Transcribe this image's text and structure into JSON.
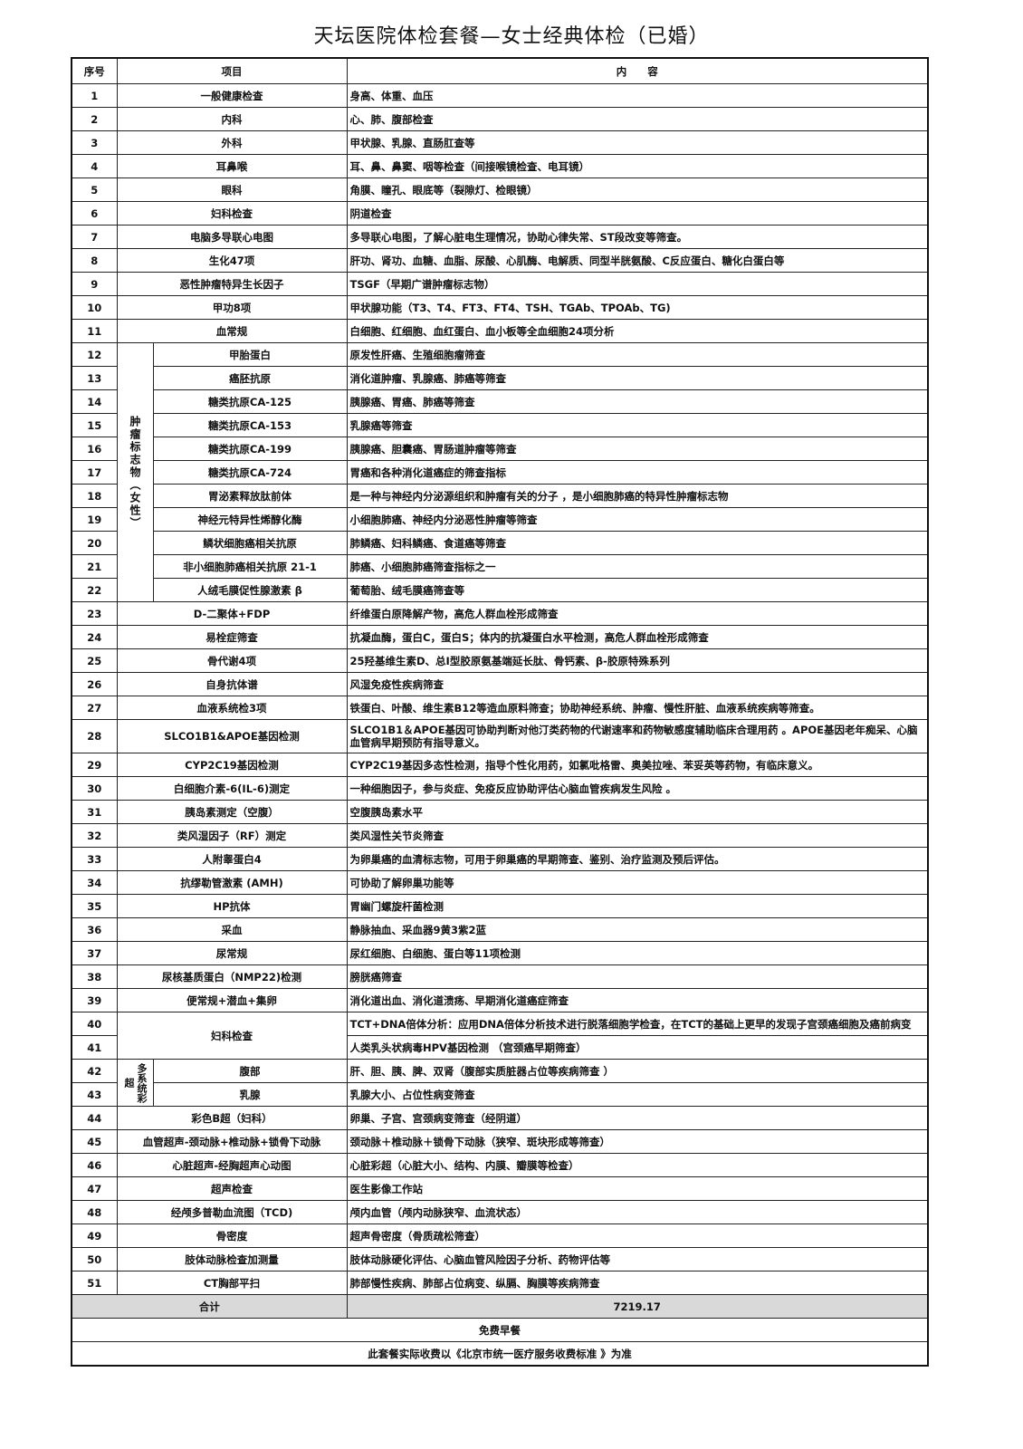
{
  "title": "天坛医院体检套餐—女士经典体检（已婚）",
  "headers": {
    "no": "序号",
    "item": "项目",
    "content": "内　　容"
  },
  "group_labels": {
    "tumor": "肿瘤标志物（女性）",
    "gyn": "妇科检查",
    "ultrasound": "多系统彩超"
  },
  "rows": [
    {
      "no": "1",
      "item": "一般健康检查",
      "content": "身高、体重、血压"
    },
    {
      "no": "2",
      "item": "内科",
      "content": "心、肺、腹部检查"
    },
    {
      "no": "3",
      "item": "外科",
      "content": "甲状腺、乳腺、直肠肛查等"
    },
    {
      "no": "4",
      "item": "耳鼻喉",
      "content": "耳、鼻、鼻窦、咽等检查（间接喉镜检查、电耳镜）"
    },
    {
      "no": "5",
      "item": "眼科",
      "content": "角膜、瞳孔、眼底等（裂隙灯、检眼镜）"
    },
    {
      "no": "6",
      "item": "妇科检查",
      "content": "阴道检查"
    },
    {
      "no": "7",
      "item": "电脑多导联心电图",
      "content": "多导联心电图，了解心脏电生理情况，协助心律失常、ST段改变等筛查。"
    },
    {
      "no": "8",
      "item": "生化47项",
      "content": "肝功、肾功、血糖、血脂、尿酸、心肌酶、电解质、同型半胱氨酸、C反应蛋白、糖化白蛋白等"
    },
    {
      "no": "9",
      "item": "恶性肿瘤特异生长因子",
      "content": "TSGF（早期广谱肿瘤标志物）"
    },
    {
      "no": "10",
      "item": "甲功8项",
      "content": "甲状腺功能（T3、T4、FT3、FT4、TSH、TGAb、TPOAb、TG)"
    },
    {
      "no": "11",
      "item": "血常规",
      "content": "白细胞、红细胞、血红蛋白、血小板等全血细胞24项分析"
    },
    {
      "no": "12",
      "item": "甲胎蛋白",
      "content": "原发性肝癌、生殖细胞瘤筛查"
    },
    {
      "no": "13",
      "item": "癌胚抗原",
      "content": "消化道肿瘤、乳腺癌、肺癌等筛查"
    },
    {
      "no": "14",
      "item": "糖类抗原CA-125",
      "content": "胰腺癌、胃癌、肺癌等筛查"
    },
    {
      "no": "15",
      "item": "糖类抗原CA-153",
      "content": "乳腺癌等筛查"
    },
    {
      "no": "16",
      "item": "糖类抗原CA-199",
      "content": "胰腺癌、胆囊癌、胃肠道肿瘤等筛查"
    },
    {
      "no": "17",
      "item": "糖类抗原CA-724",
      "content": "胃癌和各种消化道癌症的筛查指标"
    },
    {
      "no": "18",
      "item": "胃泌素释放肽前体",
      "content": "是一种与神经内分泌源组织和肿瘤有关的分子 ，是小细胞肺癌的特异性肿瘤标志物"
    },
    {
      "no": "19",
      "item": "神经元特异性烯醇化酶",
      "content": "小细胞肺癌、神经内分泌恶性肿瘤等筛查"
    },
    {
      "no": "20",
      "item": "鳞状细胞癌相关抗原",
      "content": "肺鳞癌、妇科鳞癌、食道癌等筛查"
    },
    {
      "no": "21",
      "item": "非小细胞肺癌相关抗原 21-1",
      "content": "肺癌、小细胞肺癌筛查指标之一"
    },
    {
      "no": "22",
      "item": "人绒毛膜促性腺激素 β",
      "content": "葡萄胎、绒毛膜癌筛查等"
    },
    {
      "no": "23",
      "item": "D-二聚体+FDP",
      "content": "纤维蛋白原降解产物，高危人群血栓形成筛查"
    },
    {
      "no": "24",
      "item": "易栓症筛查",
      "content": "抗凝血酶，蛋白C，蛋白S；体内的抗凝蛋白水平检测，高危人群血栓形成筛查"
    },
    {
      "no": "25",
      "item": "骨代谢4项",
      "content": "25羟基维生素D、总Ⅰ型胶原氨基端延长肽、骨钙素、β-胶原特殊系列"
    },
    {
      "no": "26",
      "item": "自身抗体谱",
      "content": "风湿免疫性疾病筛查"
    },
    {
      "no": "27",
      "item": "血液系统检3项",
      "content": "铁蛋白、叶酸、维生素B12等造血原料筛查；协助神经系统、肿瘤、慢性肝脏、血液系统疾病等筛查。"
    },
    {
      "no": "28",
      "item": "SLCO1B1&APOE基因检测",
      "content": "SLCO1B1＆APOE基因可协助判断对他汀类药物的代谢速率和药物敏感度辅助临床合理用药 。APOE基因老年痴呆、心脑血管病早期预防有指导意义。"
    },
    {
      "no": "29",
      "item": "CYP2C19基因检测",
      "content": "CYP2C19基因多态性检测，指导个性化用药，如氯吡格雷、奥美拉唑、苯妥英等药物，有临床意义。"
    },
    {
      "no": "30",
      "item": "白细胞介素-6(IL-6)测定",
      "content": "一种细胞因子，参与炎症、免疫反应协助评估心脑血管疾病发生风险 。"
    },
    {
      "no": "31",
      "item": "胰岛素测定（空腹）",
      "content": "空腹胰岛素水平"
    },
    {
      "no": "32",
      "item": "类风湿因子（RF）测定",
      "content": "类风湿性关节炎筛查"
    },
    {
      "no": "33",
      "item": "人附睾蛋白4",
      "content": "为卵巢癌的血清标志物，可用于卵巢癌的早期筛查、鉴别、治疗监测及预后评估。"
    },
    {
      "no": "34",
      "item": "抗缪勒管激素 (AMH)",
      "content": "可协助了解卵巢功能等"
    },
    {
      "no": "35",
      "item": "HP抗体",
      "content": "胃幽门螺旋杆菌检测"
    },
    {
      "no": "36",
      "item": "采血",
      "content": "静脉抽血、采血器9黄3紫2蓝"
    },
    {
      "no": "37",
      "item": "尿常规",
      "content": "尿红细胞、白细胞、蛋白等11项检测"
    },
    {
      "no": "38",
      "item": "尿核基质蛋白（NMP22)检测",
      "content": "膀胱癌筛查"
    },
    {
      "no": "39",
      "item": "便常规+潜血+集卵",
      "content": "消化道出血、消化道溃疡、早期消化道癌症筛查"
    },
    {
      "no": "40",
      "item": "",
      "content": "TCT+DNA倍体分析：应用DNA倍体分析技术进行脱落细胞学检查，在TCT的基础上更早的发现子宫颈癌细胞及癌前病变"
    },
    {
      "no": "41",
      "item": "",
      "content": "人类乳头状病毒HPV基因检测 （宫颈癌早期筛查）"
    },
    {
      "no": "42",
      "item": "腹部",
      "content": "肝、胆、胰、脾、双肾（腹部实质脏器占位等疾病筛查 ）"
    },
    {
      "no": "43",
      "item": "乳腺",
      "content": "乳腺大小、占位性病变筛查"
    },
    {
      "no": "44",
      "item": "彩色B超（妇科）",
      "content": "卵巢、子宫、宫颈病变筛查（经阴道）"
    },
    {
      "no": "45",
      "item": "血管超声-颈动脉+椎动脉+锁骨下动脉",
      "content": "颈动脉＋椎动脉＋锁骨下动脉（狭窄、斑块形成等筛查）"
    },
    {
      "no": "46",
      "item": "心脏超声-经胸超声心动图",
      "content": "心脏彩超（心脏大小、结构、内膜、瓣膜等检查）"
    },
    {
      "no": "47",
      "item": "超声检查",
      "content": "医生影像工作站"
    },
    {
      "no": "48",
      "item": "经颅多普勒血流图（TCD)",
      "content": "颅内血管（颅内动脉狭窄、血流状态）"
    },
    {
      "no": "49",
      "item": "骨密度",
      "content": "超声骨密度（骨质疏松筛查）"
    },
    {
      "no": "50",
      "item": "肢体动脉检查加测量",
      "content": "肢体动脉硬化评估、心脑血管风险因子分析、药物评估等"
    },
    {
      "no": "51",
      "item": "CT胸部平扫",
      "content": "肺部慢性疾病、肺部占位病变、纵膈、胸膜等疾病筛查"
    }
  ],
  "total": {
    "label": "合计",
    "value": "7219.17"
  },
  "breakfast": "免费早餐",
  "note": "此套餐实际收费以《北京市统一医疗服务收费标准 》为准",
  "colors": {
    "total_row_bg": "#d9d9d9",
    "border": "#222222"
  }
}
